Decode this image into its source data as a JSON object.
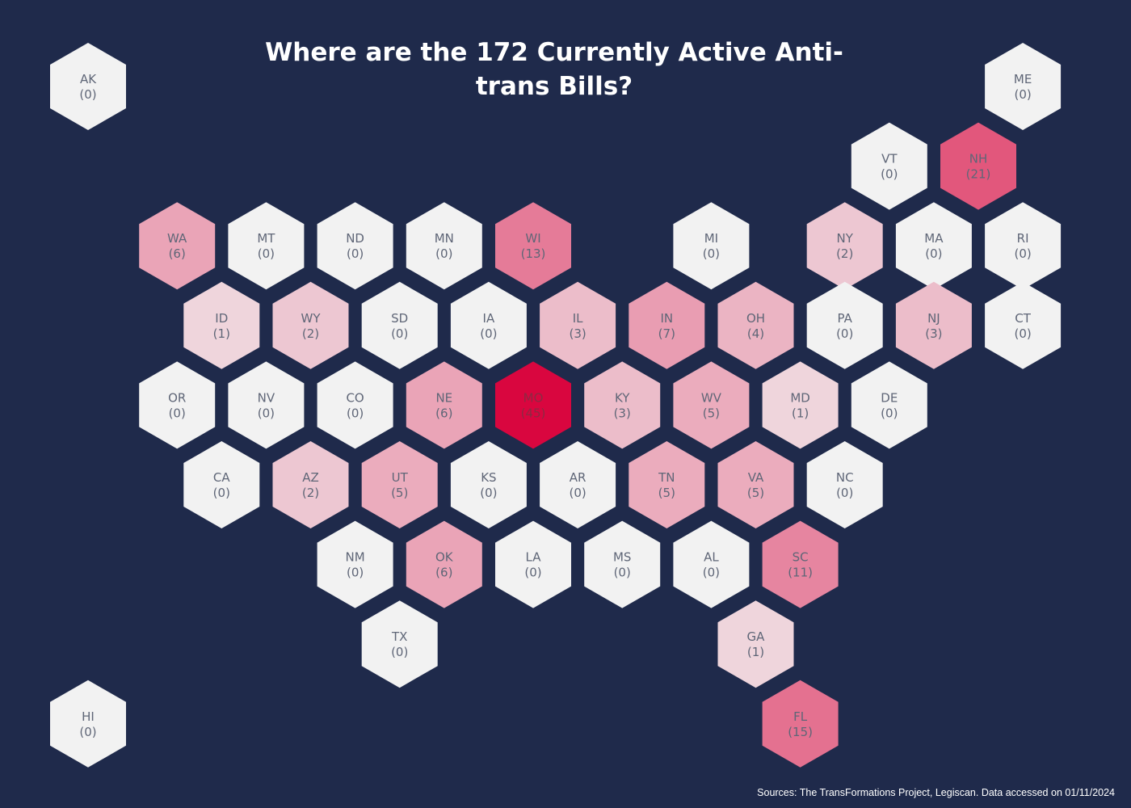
{
  "title": "Where are the 172 Currently Active Anti-trans Bills?",
  "source": "Sources: The TransFormations Project, Legiscan.  Data accessed on 01/11/2024",
  "colors": {
    "background": "#1f2a4b",
    "zero": "#f2f2f2",
    "max": "#d9063f",
    "text": "#5f6677"
  },
  "states": [
    {
      "abbr": "AK",
      "count": 0
    },
    {
      "abbr": "ME",
      "count": 0
    },
    {
      "abbr": "VT",
      "count": 0
    },
    {
      "abbr": "NH",
      "count": 21
    },
    {
      "abbr": "WA",
      "count": 6
    },
    {
      "abbr": "MT",
      "count": 0
    },
    {
      "abbr": "ND",
      "count": 0
    },
    {
      "abbr": "MN",
      "count": 0
    },
    {
      "abbr": "WI",
      "count": 13
    },
    {
      "abbr": "MI",
      "count": 0
    },
    {
      "abbr": "NY",
      "count": 2
    },
    {
      "abbr": "MA",
      "count": 0
    },
    {
      "abbr": "RI",
      "count": 0
    },
    {
      "abbr": "ID",
      "count": 1
    },
    {
      "abbr": "WY",
      "count": 2
    },
    {
      "abbr": "SD",
      "count": 0
    },
    {
      "abbr": "IA",
      "count": 0
    },
    {
      "abbr": "IL",
      "count": 3
    },
    {
      "abbr": "IN",
      "count": 7
    },
    {
      "abbr": "OH",
      "count": 4
    },
    {
      "abbr": "PA",
      "count": 0
    },
    {
      "abbr": "NJ",
      "count": 3
    },
    {
      "abbr": "CT",
      "count": 0
    },
    {
      "abbr": "OR",
      "count": 0
    },
    {
      "abbr": "NV",
      "count": 0
    },
    {
      "abbr": "CO",
      "count": 0
    },
    {
      "abbr": "NE",
      "count": 6
    },
    {
      "abbr": "MO",
      "count": 45
    },
    {
      "abbr": "KY",
      "count": 3
    },
    {
      "abbr": "WV",
      "count": 5
    },
    {
      "abbr": "MD",
      "count": 1
    },
    {
      "abbr": "DE",
      "count": 0
    },
    {
      "abbr": "CA",
      "count": 0
    },
    {
      "abbr": "AZ",
      "count": 2
    },
    {
      "abbr": "UT",
      "count": 5
    },
    {
      "abbr": "KS",
      "count": 0
    },
    {
      "abbr": "AR",
      "count": 0
    },
    {
      "abbr": "TN",
      "count": 5
    },
    {
      "abbr": "VA",
      "count": 5
    },
    {
      "abbr": "NC",
      "count": 0
    },
    {
      "abbr": "NM",
      "count": 0
    },
    {
      "abbr": "OK",
      "count": 6
    },
    {
      "abbr": "LA",
      "count": 0
    },
    {
      "abbr": "MS",
      "count": 0
    },
    {
      "abbr": "AL",
      "count": 0
    },
    {
      "abbr": "SC",
      "count": 11
    },
    {
      "abbr": "TX",
      "count": 0
    },
    {
      "abbr": "GA",
      "count": 1
    },
    {
      "abbr": "HI",
      "count": 0
    },
    {
      "abbr": "FL",
      "count": 15
    }
  ]
}
